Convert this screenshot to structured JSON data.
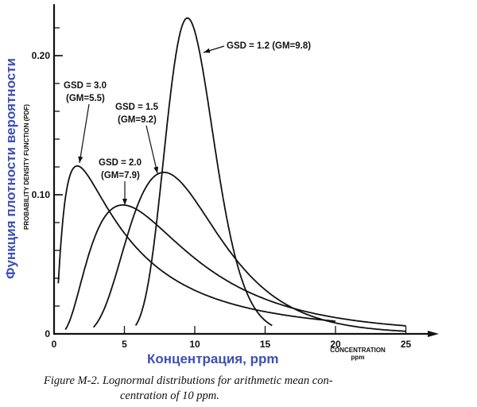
{
  "chart_data": {
    "type": "line",
    "title": "",
    "xlabel": "CONCENTRATION ppm",
    "xlabel_translation": "Концентрация, ppm",
    "ylabel": "PROBABILITY DENSITY FUNCTION (PDF)",
    "ylabel_translation": "Функция плотности вероятности",
    "xlim": [
      0,
      27
    ],
    "ylim": [
      0,
      0.237
    ],
    "x_ticks": [
      "0",
      "5",
      "10",
      "15",
      "20",
      "25"
    ],
    "y_ticks": [
      "0",
      "0.10",
      "0.20"
    ],
    "y_minor_step": 0.02,
    "grid": false,
    "distribution": "lognormal",
    "series": [
      {
        "name": "GSD = 3.0 (GM=5.5)",
        "label_line1": "GSD = 3.0",
        "label_line2": "(GM=5.5)",
        "gsd": 3.0,
        "gm": 5.5,
        "x_range": [
          0.3,
          20
        ],
        "peak": {
          "x": 1.8,
          "y": 0.121
        }
      },
      {
        "name": "GSD = 2.0 (GM=7.9)",
        "label_line1": "GSD = 2.0",
        "label_line2": "(GM=7.9)",
        "gsd": 2.0,
        "gm": 7.9,
        "x_range": [
          0.8,
          25
        ],
        "peak": {
          "x": 4.9,
          "y": 0.092
        }
      },
      {
        "name": "GSD = 1.5 (GM=9.2)",
        "label_line1": "GSD = 1.5",
        "label_line2": "(GM=9.2)",
        "gsd": 1.5,
        "gm": 9.2,
        "x_range": [
          2.8,
          25
        ],
        "peak": {
          "x": 7.8,
          "y": 0.115
        }
      },
      {
        "name": "GSD = 1.2 (GM=9.8)",
        "label_line1": "GSD = 1.2 (GM=9.8)",
        "label_line2": "",
        "gsd": 1.2,
        "gm": 9.8,
        "x_range": [
          5.8,
          15.5
        ],
        "peak": {
          "x": 9.5,
          "y": 0.227
        }
      }
    ]
  },
  "caption": {
    "line1": "Figure  M-2.  Lognormal distributions for arithmetic mean con-",
    "line2": "centration of 10 ppm."
  },
  "colors": {
    "curve": "#111111",
    "translation_text": "#3d4fb5"
  }
}
